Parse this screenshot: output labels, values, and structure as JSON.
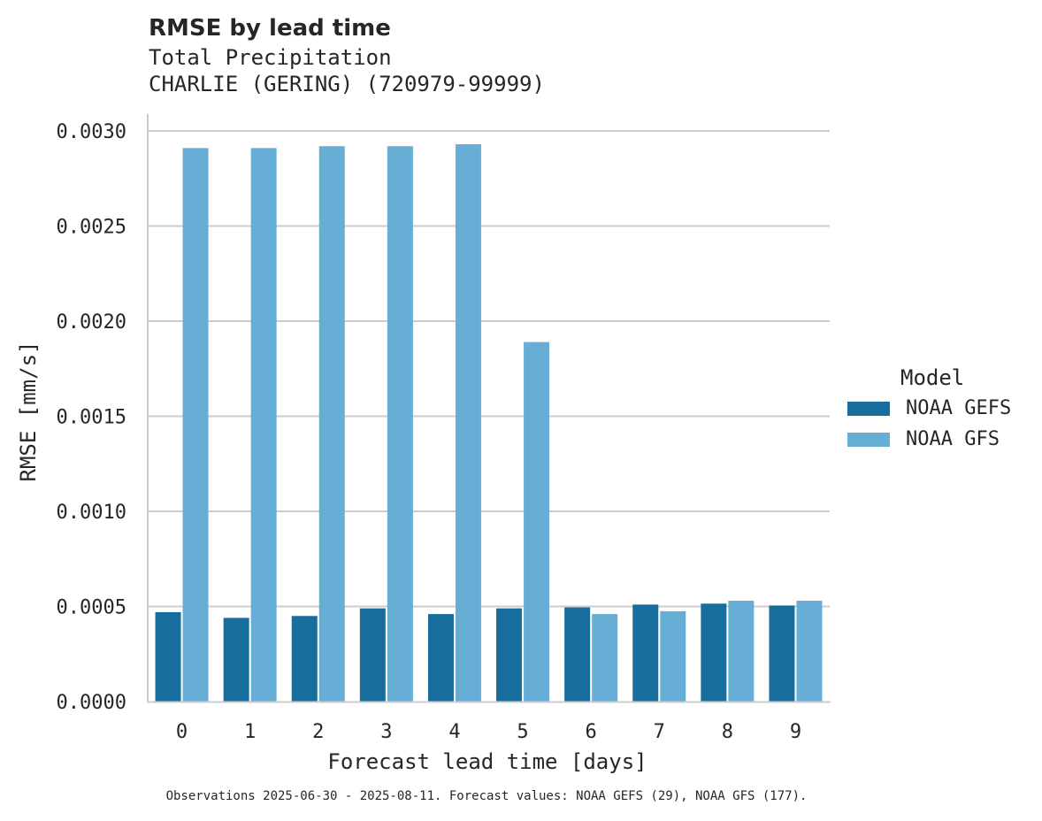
{
  "chart_data": {
    "type": "bar",
    "title": "RMSE by lead time",
    "subtitle": [
      "Total Precipitation",
      "CHARLIE (GERING) (720979-99999)"
    ],
    "xlabel": "Forecast lead time [days]",
    "ylabel": "RMSE [mm/s]",
    "categories": [
      "0",
      "1",
      "2",
      "3",
      "4",
      "5",
      "6",
      "7",
      "8",
      "9"
    ],
    "series": [
      {
        "name": "NOAA GEFS",
        "color": "#176d9c",
        "values": [
          0.00047,
          0.00044,
          0.00045,
          0.00049,
          0.00046,
          0.00049,
          0.000495,
          0.00051,
          0.000515,
          0.000505
        ]
      },
      {
        "name": "NOAA GFS",
        "color": "#67aed6",
        "values": [
          0.00291,
          0.00291,
          0.00292,
          0.00292,
          0.00293,
          0.00189,
          0.00046,
          0.000475,
          0.00053,
          0.00053
        ]
      }
    ],
    "ylim": [
      0,
      0.00308
    ],
    "yticks": [
      "0.0000",
      "0.0005",
      "0.0010",
      "0.0015",
      "0.0020",
      "0.0025",
      "0.0030"
    ],
    "grid": "horizontal",
    "legend": {
      "title": "Model",
      "placement": "right"
    },
    "footnote": "Observations 2025-06-30 - 2025-08-11. Forecast values: NOAA GEFS (29), NOAA GFS (177)."
  }
}
